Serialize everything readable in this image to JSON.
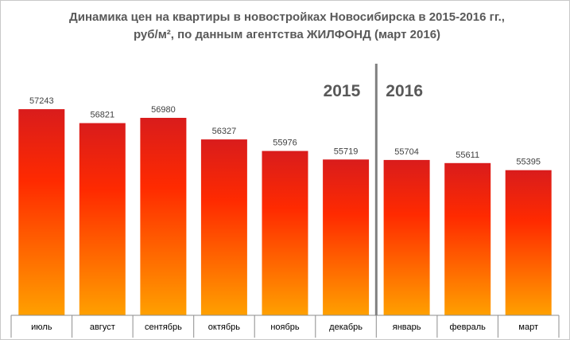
{
  "chart_data": {
    "type": "bar",
    "title_line1": "Динамика цен на квартиры в новостройках Новосибирска в 2015-2016 гг.,",
    "title_line2": "руб/м², по данным агентства ЖИЛФОНД (март 2016)",
    "categories": [
      "июль",
      "август",
      "сентябрь",
      "октябрь",
      "ноябрь",
      "декабрь",
      "январь",
      "февраль",
      "март"
    ],
    "values": [
      57243,
      56821,
      56980,
      56327,
      55976,
      55719,
      55704,
      55611,
      55395
    ],
    "annotations": [
      {
        "text": "2015",
        "group": "before-divider"
      },
      {
        "text": "2016",
        "group": "after-divider"
      }
    ],
    "ylim": [
      51000,
      57800
    ],
    "grid": false,
    "legend": "none",
    "colors": {
      "bar_top": "#d91c1c",
      "bar_mid": "#ff2a00",
      "bar_bottom": "#ffa000",
      "divider": "#808080",
      "year_text": "#595959"
    }
  }
}
